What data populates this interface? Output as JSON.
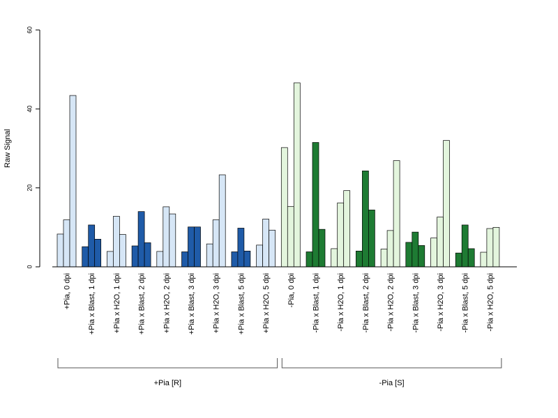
{
  "chart_data": {
    "type": "bar",
    "ylabel": "Raw Signal",
    "xlabel": "",
    "title": "",
    "ylim": [
      0,
      60
    ],
    "yticks": [
      0,
      20,
      40,
      60
    ],
    "categories": [
      "+Pia, 0 dpi",
      "+Pia x Blast, 1 dpi",
      "+Pia x H2O, 1 dpi",
      "+Pia x Blast, 2 dpi",
      "+Pia x H2O, 2 dpi",
      "+Pia x Blast, 3 dpi",
      "+Pia x H2O, 3 dpi",
      "+Pia x Blast, 5 dpi",
      "+Pia x H2O, 5 dpi",
      "-Pia, 0 dpi",
      "-Pia x Blast, 1 dpi",
      "-Pia x H2O, 1 dpi",
      "-Pia x Blast, 2 dpi",
      "-Pia x H2O, 2 dpi",
      "-Pia x Blast, 3 dpi",
      "-Pia x H2O, 3 dpi",
      "-Pia x Blast, 5 dpi",
      "-Pia x H2O, 5 dpi"
    ],
    "replicates_per_category": 3,
    "values": [
      [
        8.3,
        11.9,
        43.4
      ],
      [
        5.1,
        10.6,
        7.0
      ],
      [
        3.9,
        12.8,
        8.2
      ],
      [
        5.3,
        14.0,
        6.1
      ],
      [
        3.9,
        15.2,
        13.4
      ],
      [
        3.8,
        10.1,
        10.1
      ],
      [
        5.8,
        11.9,
        23.3
      ],
      [
        3.8,
        9.8,
        4.0
      ],
      [
        5.5,
        12.1,
        9.3
      ],
      [
        30.2,
        15.3,
        46.6
      ],
      [
        3.8,
        31.5,
        9.5
      ],
      [
        4.6,
        16.2,
        19.3
      ],
      [
        4.0,
        24.3,
        14.4
      ],
      [
        4.5,
        9.2,
        26.9
      ],
      [
        6.2,
        8.8,
        5.4
      ],
      [
        7.3,
        12.6,
        32.0
      ],
      [
        3.5,
        10.6,
        4.6
      ],
      [
        3.7,
        9.7,
        10.0
      ]
    ],
    "bar_colors": [
      "#d6e6f6",
      "#1f5ba8",
      "#d6e6f6",
      "#1f5ba8",
      "#d6e6f6",
      "#1f5ba8",
      "#d6e6f6",
      "#1f5ba8",
      "#d6e6f6",
      "#e3f5dd",
      "#1e7b33",
      "#e3f5dd",
      "#1e7b33",
      "#e3f5dd",
      "#1e7b33",
      "#e3f5dd",
      "#1e7b33",
      "#e3f5dd"
    ],
    "groups": [
      {
        "label": "+Pia [R]",
        "from": 0,
        "to": 8
      },
      {
        "label": "-Pia [S]",
        "from": 9,
        "to": 17
      }
    ],
    "grid": false,
    "legend": "none"
  }
}
